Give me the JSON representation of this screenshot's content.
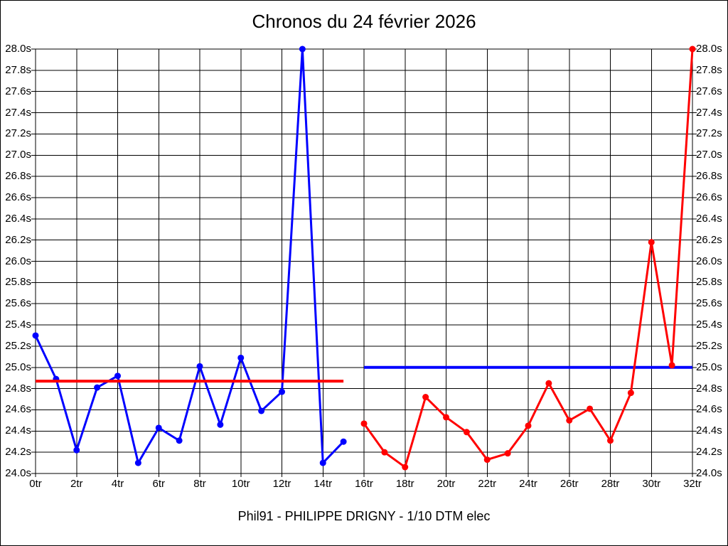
{
  "page": {
    "title": "Chronos du 24 février 2026",
    "caption": "Phil91 - PHILIPPE DRIGNY - 1/10 DTM elec"
  },
  "colors": {
    "series_blue": "#0000ff",
    "series_red": "#ff0000",
    "grid": "#000000",
    "background": "#ffffff"
  },
  "chart_data": {
    "type": "line",
    "title": "Chronos du 24 février 2026",
    "subtitle": "Phil91 - PHILIPPE DRIGNY - 1/10 DTM elec",
    "grid": true,
    "legend": "none",
    "xlim": [
      0,
      32
    ],
    "ylim": [
      24.0,
      28.0
    ],
    "x_tick_labels": [
      "0tr",
      "2tr",
      "4tr",
      "6tr",
      "8tr",
      "10tr",
      "12tr",
      "14tr",
      "16tr",
      "18tr",
      "20tr",
      "22tr",
      "24tr",
      "26tr",
      "28tr",
      "30tr",
      "32tr"
    ],
    "y_tick_labels": [
      "28.0s",
      "27.8s",
      "27.6s",
      "27.4s",
      "27.2s",
      "27.0s",
      "26.8s",
      "26.6s",
      "26.4s",
      "26.2s",
      "26.0s",
      "25.8s",
      "25.6s",
      "25.4s",
      "25.2s",
      "25.0s",
      "24.8s",
      "24.6s",
      "24.4s",
      "24.2s",
      "24.0s"
    ],
    "y_axis_labels_both_sides": true,
    "series": [
      {
        "name": "blue-series-laps-0-15",
        "color": "#0000ff",
        "x": [
          0,
          1,
          2,
          3,
          4,
          5,
          6,
          7,
          8,
          9,
          10,
          11,
          12,
          13,
          14,
          15
        ],
        "values": [
          25.3,
          24.89,
          24.22,
          24.81,
          24.92,
          24.1,
          24.43,
          24.31,
          25.01,
          24.46,
          25.09,
          24.59,
          24.77,
          28.0,
          24.1,
          24.3
        ]
      },
      {
        "name": "red-series-laps-16-32",
        "color": "#ff0000",
        "x": [
          16,
          17,
          18,
          19,
          20,
          21,
          22,
          23,
          24,
          25,
          26,
          27,
          28,
          29,
          30,
          31,
          32
        ],
        "values": [
          24.47,
          24.2,
          24.06,
          24.72,
          24.53,
          24.39,
          24.13,
          24.19,
          24.45,
          24.85,
          24.5,
          24.61,
          24.31,
          24.76,
          26.18,
          25.02,
          28.0
        ]
      }
    ],
    "reference_lines": [
      {
        "name": "red-average-line",
        "color": "#ff0000",
        "value": 24.87,
        "x_start": 0,
        "x_end": 15
      },
      {
        "name": "blue-average-line",
        "color": "#0000ff",
        "value": 25.0,
        "x_start": 16,
        "x_end": 32
      }
    ]
  }
}
